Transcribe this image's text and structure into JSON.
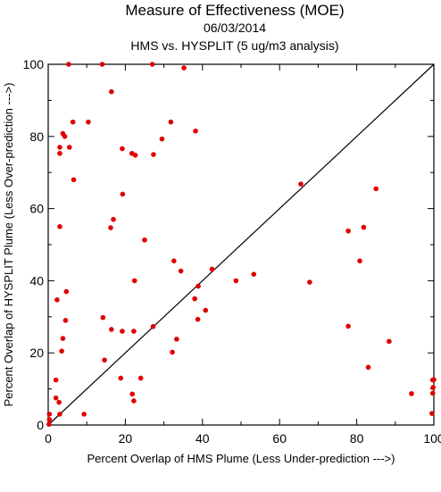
{
  "chart_data": {
    "type": "scatter",
    "title": "Measure of Effectiveness (MOE)",
    "subtitle": "06/03/2014",
    "subtitle2": "HMS vs. HYSPLIT  (5 ug/m3 analysis)",
    "xlabel": "Percent Overlap of HMS Plume (Less Under-prediction --->)",
    "ylabel": "Percent Overlap of HYSPLIT Plume (Less Over-prediction --->)",
    "xlim": [
      0,
      100
    ],
    "ylim": [
      0,
      100
    ],
    "xticks": [
      0,
      20,
      40,
      60,
      80,
      100
    ],
    "yticks": [
      0,
      20,
      40,
      60,
      80,
      100
    ],
    "grid": false,
    "reference_line": "diagonal y = x",
    "point_color": "#e00000",
    "points": [
      [
        0.2,
        0.2
      ],
      [
        0.3,
        1.5
      ],
      [
        0.3,
        3.0
      ],
      [
        2.0,
        12.5
      ],
      [
        2.0,
        7.5
      ],
      [
        2.3,
        34.7
      ],
      [
        2.8,
        6.3
      ],
      [
        3.0,
        3.0
      ],
      [
        3.0,
        77.0
      ],
      [
        3.0,
        75.3
      ],
      [
        3.0,
        55.0
      ],
      [
        3.5,
        20.5
      ],
      [
        3.8,
        24.0
      ],
      [
        3.8,
        80.8
      ],
      [
        4.3,
        80.0
      ],
      [
        4.5,
        29.0
      ],
      [
        4.7,
        37.0
      ],
      [
        5.3,
        100.0
      ],
      [
        5.5,
        77.0
      ],
      [
        6.4,
        84.0
      ],
      [
        6.6,
        68.0
      ],
      [
        9.3,
        3.0
      ],
      [
        10.4,
        84.0
      ],
      [
        14.0,
        100.0
      ],
      [
        14.2,
        29.8
      ],
      [
        14.6,
        18.0
      ],
      [
        16.2,
        54.7
      ],
      [
        16.4,
        92.4
      ],
      [
        16.4,
        26.5
      ],
      [
        16.9,
        57.0
      ],
      [
        18.8,
        13.0
      ],
      [
        19.2,
        26.0
      ],
      [
        19.2,
        76.6
      ],
      [
        19.3,
        64.0
      ],
      [
        21.7,
        75.3
      ],
      [
        21.8,
        8.6
      ],
      [
        22.2,
        26.0
      ],
      [
        22.2,
        6.7
      ],
      [
        22.4,
        40.0
      ],
      [
        22.6,
        74.8
      ],
      [
        24.0,
        13.0
      ],
      [
        25.0,
        51.3
      ],
      [
        27.0,
        100.0
      ],
      [
        27.2,
        27.3
      ],
      [
        27.3,
        75.0
      ],
      [
        29.5,
        79.3
      ],
      [
        31.8,
        84.0
      ],
      [
        32.2,
        20.2
      ],
      [
        32.6,
        45.5
      ],
      [
        33.3,
        23.8
      ],
      [
        34.4,
        42.7
      ],
      [
        35.2,
        99.0
      ],
      [
        38.0,
        35.0
      ],
      [
        38.2,
        81.5
      ],
      [
        38.8,
        29.3
      ],
      [
        38.9,
        38.5
      ],
      [
        40.8,
        31.8
      ],
      [
        42.5,
        43.2
      ],
      [
        48.7,
        40.0
      ],
      [
        53.3,
        41.8
      ],
      [
        65.5,
        66.8
      ],
      [
        67.8,
        39.6
      ],
      [
        77.8,
        27.4
      ],
      [
        77.8,
        53.8
      ],
      [
        80.8,
        45.5
      ],
      [
        81.8,
        54.8
      ],
      [
        83.0,
        16.0
      ],
      [
        85.0,
        65.5
      ],
      [
        88.4,
        23.2
      ],
      [
        94.2,
        8.7
      ],
      [
        99.5,
        3.2
      ],
      [
        99.7,
        12.5
      ],
      [
        99.7,
        8.8
      ],
      [
        99.8,
        10.4
      ],
      [
        100.0,
        12.6
      ]
    ]
  }
}
